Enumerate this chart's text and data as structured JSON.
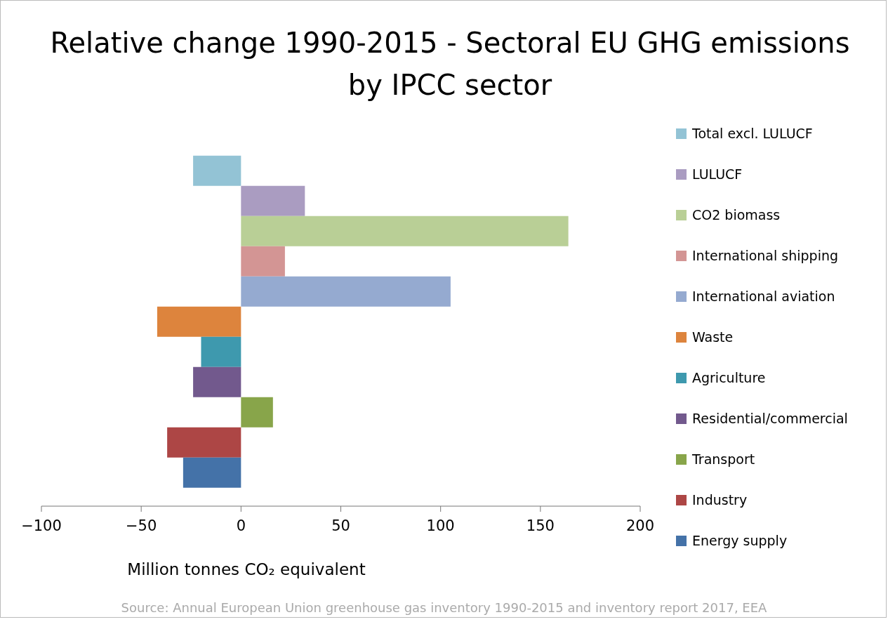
{
  "chart_data": {
    "type": "bar",
    "orientation": "horizontal",
    "title": "Relative change 1990-2015 - Sectoral EU GHG emissions by IPCC sector",
    "xlabel": "Million tonnes CO₂ equivalent",
    "categories": [
      null
    ],
    "series": [
      {
        "name": "Total excl. LULUCF",
        "color": "#93c3d5",
        "values": [
          -24
        ]
      },
      {
        "name": "LULUCF",
        "color": "#aa9cc1",
        "values": [
          32
        ]
      },
      {
        "name": "CO2 biomass",
        "color": "#b9cf96",
        "values": [
          164
        ]
      },
      {
        "name": "International shipping",
        "color": "#d39594",
        "values": [
          22
        ]
      },
      {
        "name": "International aviation",
        "color": "#95aad0",
        "values": [
          105
        ]
      },
      {
        "name": "Waste",
        "color": "#dd843d",
        "values": [
          -42
        ]
      },
      {
        "name": "Agriculture",
        "color": "#3e99ae",
        "values": [
          -20
        ]
      },
      {
        "name": "Residential/commercial",
        "color": "#72598d",
        "values": [
          -24
        ]
      },
      {
        "name": "Transport",
        "color": "#88a54a",
        "values": [
          16
        ]
      },
      {
        "name": "Industry",
        "color": "#ad4645",
        "values": [
          -37
        ]
      },
      {
        "name": "Energy supply",
        "color": "#4472a8",
        "values": [
          -29
        ]
      }
    ],
    "xlim": [
      -100,
      200
    ],
    "xticks": [
      -100,
      -50,
      0,
      50,
      100,
      150,
      200
    ],
    "grid": false,
    "legend": "right",
    "annotations": [
      "Source: Annual European Union greenhouse gas inventory 1990-2015 and inventory report 2017, EEA"
    ]
  }
}
